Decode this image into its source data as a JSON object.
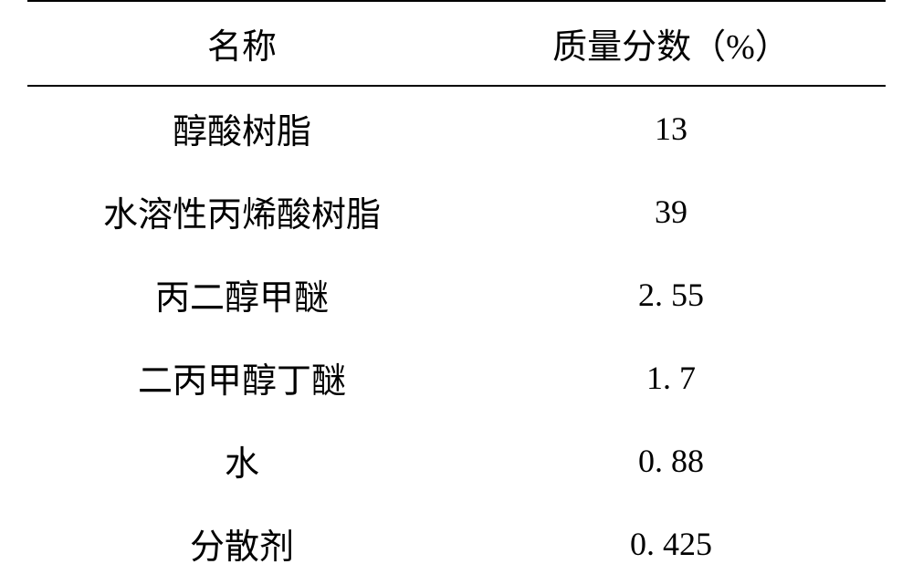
{
  "table": {
    "headers": {
      "name": "名称",
      "massFraction": "质量分数（%）"
    },
    "rows": [
      {
        "name": "醇酸树脂",
        "value": "13"
      },
      {
        "name": "水溶性丙烯酸树脂",
        "value": "39"
      },
      {
        "name": "丙二醇甲醚",
        "value": "2. 55"
      },
      {
        "name": "二丙甲醇丁醚",
        "value": "1. 7"
      },
      {
        "name": "水",
        "value": "0. 88"
      },
      {
        "name": "分散剂",
        "value": "0. 425"
      }
    ],
    "styling": {
      "background_color": "#ffffff",
      "text_color": "#000000",
      "border_color": "#000000",
      "border_width_top": 2,
      "border_width_header": 2,
      "header_fontsize": 38,
      "cell_fontsize": 38,
      "value_fontsize": 36,
      "row_padding": 18,
      "font_family": "SimSun"
    }
  }
}
